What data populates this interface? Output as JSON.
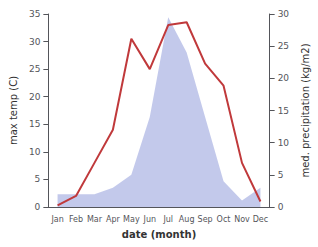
{
  "chart_data": {
    "type": "line",
    "xlabel": "date (month)",
    "ylabel": "max temp (C)",
    "y2label": "med. precipitation (kg/m2)",
    "categories": [
      "Jan",
      "Feb",
      "Mar",
      "Apr",
      "May",
      "Jun",
      "Jul",
      "Aug",
      "Sep",
      "Oct",
      "Nov",
      "Dec"
    ],
    "series": [
      {
        "type": "area",
        "color": "#b8c0e8",
        "axis": "y2",
        "values": [
          2.0,
          2.0,
          2.0,
          3.0,
          5.0,
          14.0,
          29.5,
          24.0,
          14.0,
          4.0,
          1.0,
          3.0
        ]
      },
      {
        "type": "line",
        "color": "#c0393b",
        "values": [
          0.3,
          2.0,
          8.0,
          14.0,
          30.5,
          25.0,
          33.0,
          33.5,
          26.0,
          22.0,
          8.0,
          1.0
        ]
      }
    ],
    "ylim": [
      0,
      35
    ],
    "yticks": [
      0,
      5,
      10,
      15,
      20,
      25,
      30,
      35
    ],
    "y2lim": [
      0,
      30
    ],
    "y2ticks": [
      0,
      5,
      10,
      15,
      20,
      25,
      30
    ],
    "grid": false
  }
}
